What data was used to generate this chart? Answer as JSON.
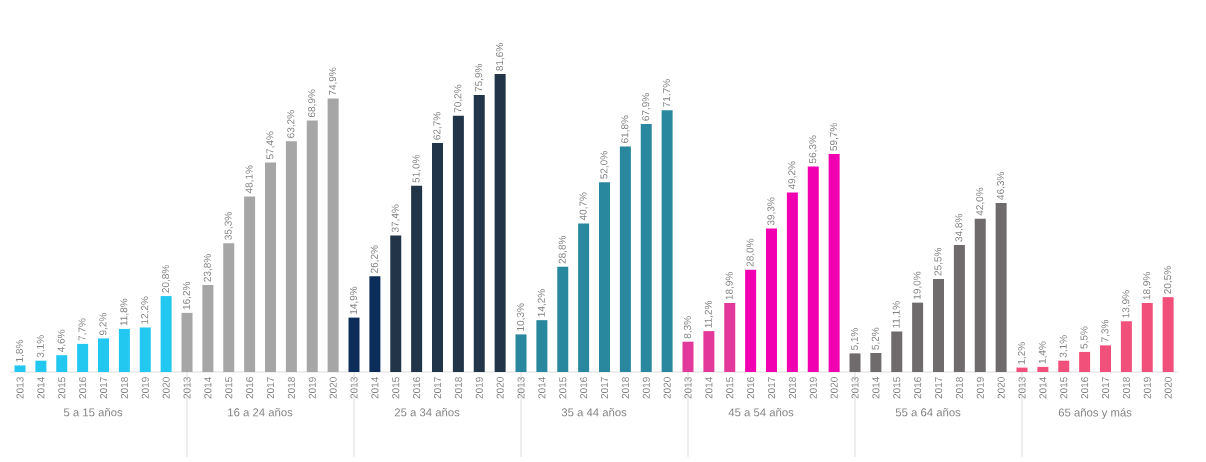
{
  "chart_data": [
    {
      "type": "bar",
      "xlabel": "5 a 15 años",
      "categories": [
        "2013",
        "2014",
        "2015",
        "2016",
        "2017",
        "2018",
        "2019",
        "2020"
      ],
      "values": [
        1.8,
        3.1,
        4.6,
        7.7,
        9.2,
        11.8,
        12.2,
        20.8
      ],
      "value_labels": [
        "1,8%",
        "3,1%",
        "4,6%",
        "7,7%",
        "9,2%",
        "11,8%",
        "12,2%",
        "20,8%"
      ],
      "color": "#22c8f0",
      "tick_labels": "x"
    },
    {
      "type": "bar",
      "xlabel": "16 a 24 años",
      "categories": [
        "2013",
        "2014",
        "2015",
        "2016",
        "2017",
        "2018",
        "2019",
        "2020"
      ],
      "values": [
        16.2,
        23.8,
        35.3,
        48.1,
        57.4,
        63.2,
        68.9,
        74.9
      ],
      "value_labels": [
        "16,2%",
        "23,8%",
        "35,3%",
        "48,1%",
        "57,4%",
        "63,2%",
        "68,9%",
        "74,9%"
      ],
      "color": "#a6a6a6",
      "tick_labels": "x"
    },
    {
      "type": "bar",
      "xlabel": "25 a 34 años",
      "categories": [
        "2013",
        "2014",
        "2015",
        "2016",
        "2017",
        "2018",
        "2019",
        "2020"
      ],
      "values": [
        14.9,
        26.2,
        37.4,
        51.0,
        62.7,
        70.2,
        75.9,
        81.6
      ],
      "value_labels": [
        "14,9%",
        "26,2%",
        "37,4%",
        "51,0%",
        "62,7%",
        "70,2%",
        "75,9%",
        "81,6%"
      ],
      "colors": [
        "#0c2d5a",
        "#0c2d5a",
        "#223448",
        "#223448",
        "#223448",
        "#223448",
        "#223448",
        "#223448"
      ],
      "tick_labels": "x"
    },
    {
      "type": "bar",
      "xlabel": "35 a 44 años",
      "categories": [
        "2013",
        "2014",
        "2015",
        "2016",
        "2017",
        "2018",
        "2019",
        "2020"
      ],
      "values": [
        10.3,
        14.2,
        28.8,
        40.7,
        52.0,
        61.8,
        67.9,
        71.7
      ],
      "value_labels": [
        "10,3%",
        "14,2%",
        "28,8%",
        "40,7%",
        "52,0%",
        "61,8%",
        "67,9%",
        "71,7%"
      ],
      "color": "#2a889e",
      "tick_labels": "x"
    },
    {
      "type": "bar",
      "xlabel": "45 a 54 años",
      "categories": [
        "2013",
        "2014",
        "2015",
        "2016",
        "2017",
        "2018",
        "2019",
        "2020"
      ],
      "values": [
        8.3,
        11.2,
        18.9,
        28.0,
        39.3,
        49.2,
        56.3,
        59.7
      ],
      "value_labels": [
        "8,3%",
        "11,2%",
        "18,9%",
        "28,0%",
        "39,3%",
        "49,2%",
        "56,3%",
        "59,7%"
      ],
      "colors": [
        "#e3399a",
        "#e3399a",
        "#e3399a",
        "#f000b0",
        "#f000b0",
        "#f000b0",
        "#f000b0",
        "#f000b0"
      ],
      "tick_labels": "x"
    },
    {
      "type": "bar",
      "xlabel": "55 a 64 años",
      "categories": [
        "2013",
        "2014",
        "2015",
        "2016",
        "2017",
        "2018",
        "2019",
        "2020"
      ],
      "values": [
        5.1,
        5.2,
        11.1,
        19.0,
        25.5,
        34.8,
        42.0,
        46.3
      ],
      "value_labels": [
        "5,1%",
        "5,2%",
        "11,1%",
        "19,0%",
        "25,5%",
        "34,8%",
        "42,0%",
        "46,3%"
      ],
      "color": "#6f6a6b",
      "tick_labels": "x"
    },
    {
      "type": "bar",
      "xlabel": "65 años y más",
      "categories": [
        "2013",
        "2014",
        "2015",
        "2016",
        "2017",
        "2018",
        "2019",
        "2020"
      ],
      "values": [
        1.2,
        1.4,
        3.1,
        5.5,
        7.3,
        13.9,
        18.9,
        20.5
      ],
      "value_labels": [
        "1,2%",
        "1,4%",
        "3,1%",
        "5,5%",
        "7,3%",
        "13,9%",
        "18,9%",
        "20,5%"
      ],
      "color": "#f0507a",
      "tick_labels": "x"
    }
  ]
}
